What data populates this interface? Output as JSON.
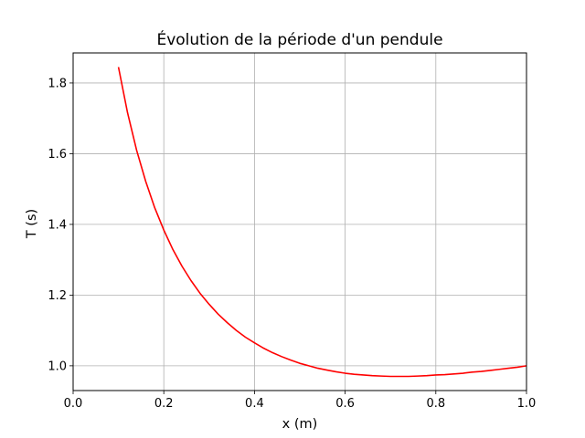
{
  "chart_data": {
    "type": "line",
    "title": "Évolution de la période d'un pendule",
    "xlabel": "x (m)",
    "ylabel": "T (s)",
    "xlim": [
      0.0,
      1.0
    ],
    "ylim": [
      0.93,
      1.885
    ],
    "grid": true,
    "x_ticks": [
      0.0,
      0.2,
      0.4,
      0.6,
      0.8,
      1.0
    ],
    "x_tick_labels": [
      "0.0",
      "0.2",
      "0.4",
      "0.6",
      "0.8",
      "1.0"
    ],
    "y_ticks": [
      1.0,
      1.2,
      1.4,
      1.6,
      1.8
    ],
    "y_tick_labels": [
      "1.0",
      "1.2",
      "1.4",
      "1.6",
      "1.8"
    ],
    "series": [
      {
        "color": "#ff0000",
        "x": [
          0.1,
          0.12,
          0.14,
          0.16,
          0.18,
          0.2,
          0.22,
          0.24,
          0.26,
          0.28,
          0.3,
          0.32,
          0.34,
          0.36,
          0.38,
          0.4,
          0.42,
          0.44,
          0.46,
          0.48,
          0.5,
          0.52,
          0.54,
          0.56,
          0.58,
          0.6,
          0.62,
          0.64,
          0.66,
          0.68,
          0.7,
          0.72,
          0.74,
          0.76,
          0.78,
          0.8,
          0.82,
          0.84,
          0.86,
          0.88,
          0.9,
          0.92,
          0.94,
          0.96,
          0.98,
          1.0
        ],
        "y": [
          1.845,
          1.716,
          1.61,
          1.522,
          1.447,
          1.384,
          1.329,
          1.282,
          1.241,
          1.205,
          1.174,
          1.146,
          1.122,
          1.1,
          1.081,
          1.065,
          1.05,
          1.037,
          1.026,
          1.016,
          1.007,
          1.0,
          0.993,
          0.988,
          0.983,
          0.979,
          0.976,
          0.974,
          0.972,
          0.971,
          0.97,
          0.97,
          0.97,
          0.971,
          0.972,
          0.974,
          0.975,
          0.977,
          0.979,
          0.982,
          0.984,
          0.987,
          0.99,
          0.993,
          0.996,
          1.0
        ]
      }
    ]
  }
}
